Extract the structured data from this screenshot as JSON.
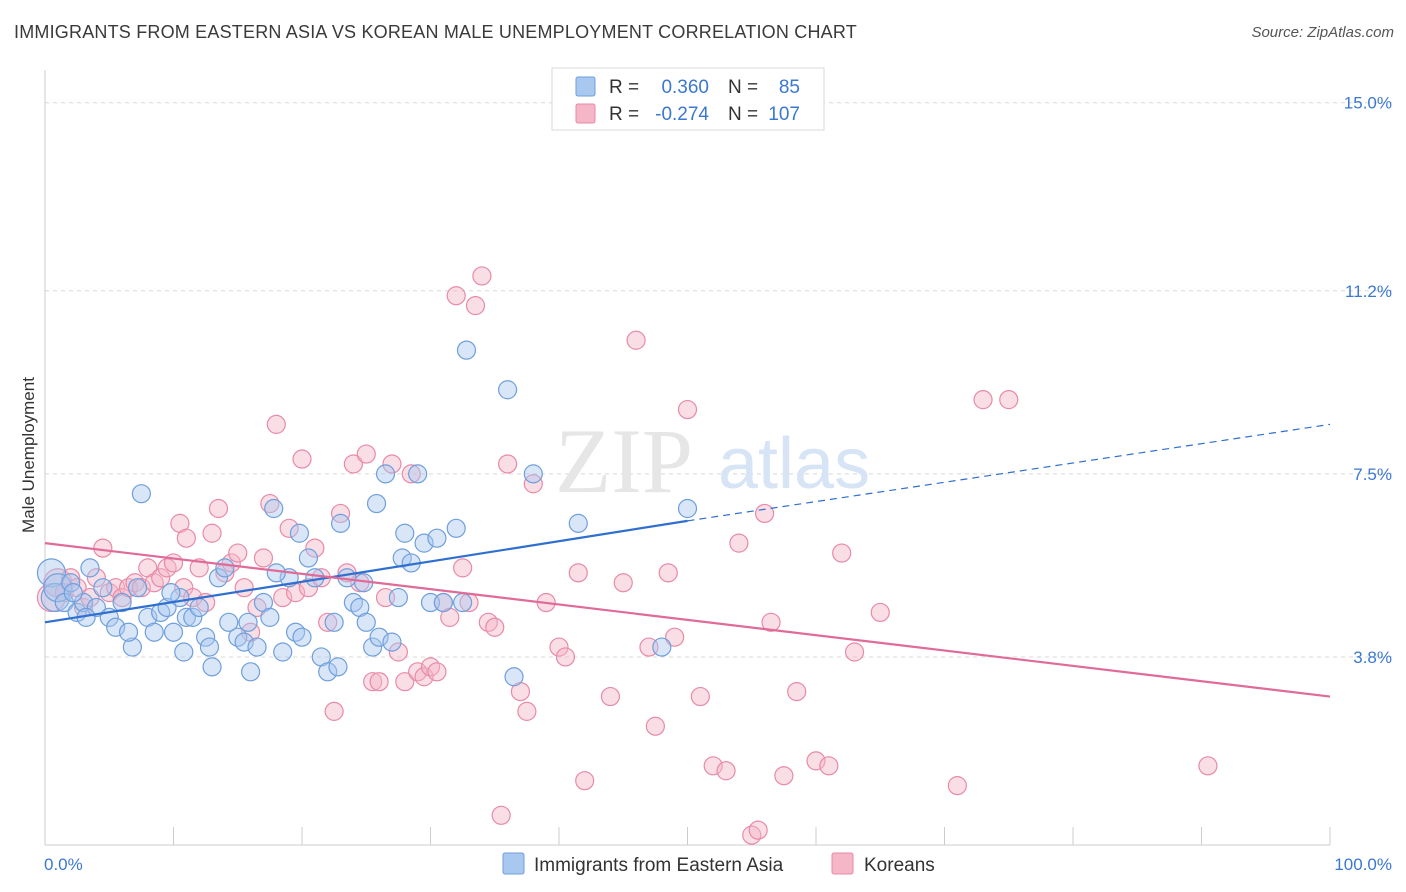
{
  "header": {
    "title": "IMMIGRANTS FROM EASTERN ASIA VS KOREAN MALE UNEMPLOYMENT CORRELATION CHART",
    "source": "Source: ZipAtlas.com"
  },
  "colors": {
    "blue": "#a9c8f0",
    "blue_stroke": "#6f9fdc",
    "blue_line": "#2f6fcf",
    "pink": "#f5b6c8",
    "pink_stroke": "#e88aa8",
    "pink_line": "#e06a98",
    "tick_blue": "#3b78d0",
    "grid": "#d8d8d8"
  },
  "watermark": {
    "zip": "ZIP",
    "atlas": "atlas"
  },
  "legend": {
    "rows": [
      {
        "r_label": "R =",
        "r_value": "0.360",
        "n_label": "N =",
        "n_value": "85"
      },
      {
        "r_label": "R =",
        "r_value": "-0.274",
        "n_label": "N =",
        "n_value": "107"
      }
    ]
  },
  "bottom_legend": [
    "Immigrants from Eastern Asia",
    "Koreans"
  ],
  "chart_data": {
    "type": "scatter",
    "title": "IMMIGRANTS FROM EASTERN ASIA VS KOREAN MALE UNEMPLOYMENT CORRELATION CHART",
    "xlabel": "",
    "ylabel": "Male Unemployment",
    "xlim": [
      0,
      100
    ],
    "ylim": [
      0,
      15.5
    ],
    "x_tick_labels": [
      "0.0%",
      "100.0%"
    ],
    "y_ticks": [
      3.8,
      7.5,
      11.2,
      15.0
    ],
    "y_tick_labels": [
      "3.8%",
      "7.5%",
      "11.2%",
      "15.0%"
    ],
    "grid": true,
    "series": [
      {
        "name": "Immigrants from Eastern Asia",
        "r": 0.36,
        "n": 85,
        "trend": {
          "x0": 0,
          "y0": 4.5,
          "x1": 50,
          "y1": 6.55,
          "dash_to": 100,
          "dash_y": 8.5
        },
        "points": [
          [
            0.5,
            5.5
          ],
          [
            0.8,
            5.0
          ],
          [
            1.0,
            5.2
          ],
          [
            1.5,
            4.9
          ],
          [
            2.0,
            5.3
          ],
          [
            2.5,
            4.7
          ],
          [
            3.0,
            4.9
          ],
          [
            3.5,
            5.6
          ],
          [
            4.0,
            4.8
          ],
          [
            4.5,
            5.2
          ],
          [
            5.0,
            4.6
          ],
          [
            5.5,
            4.4
          ],
          [
            6.0,
            4.9
          ],
          [
            6.8,
            4.0
          ],
          [
            7.2,
            5.2
          ],
          [
            7.5,
            7.1
          ],
          [
            8.0,
            4.6
          ],
          [
            8.5,
            4.3
          ],
          [
            9.0,
            4.7
          ],
          [
            9.5,
            4.8
          ],
          [
            10.0,
            4.3
          ],
          [
            10.5,
            5.0
          ],
          [
            10.8,
            3.9
          ],
          [
            11.0,
            4.6
          ],
          [
            11.5,
            4.6
          ],
          [
            12.0,
            4.8
          ],
          [
            12.5,
            4.2
          ],
          [
            12.8,
            4.0
          ],
          [
            13.0,
            3.6
          ],
          [
            13.5,
            5.4
          ],
          [
            14.0,
            5.6
          ],
          [
            14.3,
            4.5
          ],
          [
            15.0,
            4.2
          ],
          [
            15.5,
            4.1
          ],
          [
            15.8,
            4.5
          ],
          [
            16.0,
            3.5
          ],
          [
            16.5,
            4.0
          ],
          [
            17.0,
            4.9
          ],
          [
            17.5,
            4.6
          ],
          [
            17.8,
            6.8
          ],
          [
            18.5,
            3.9
          ],
          [
            19.0,
            5.4
          ],
          [
            19.5,
            4.3
          ],
          [
            19.8,
            6.3
          ],
          [
            20.0,
            4.2
          ],
          [
            20.5,
            5.8
          ],
          [
            21.0,
            5.4
          ],
          [
            21.5,
            3.8
          ],
          [
            22.0,
            3.5
          ],
          [
            22.5,
            4.5
          ],
          [
            22.8,
            3.6
          ],
          [
            23.0,
            6.5
          ],
          [
            23.5,
            5.4
          ],
          [
            24.0,
            4.9
          ],
          [
            24.5,
            4.8
          ],
          [
            25.0,
            4.5
          ],
          [
            25.5,
            4.0
          ],
          [
            25.8,
            6.9
          ],
          [
            26.0,
            4.2
          ],
          [
            26.5,
            7.5
          ],
          [
            27.0,
            4.1
          ],
          [
            27.5,
            5.0
          ],
          [
            27.8,
            5.8
          ],
          [
            28.0,
            6.3
          ],
          [
            28.5,
            5.7
          ],
          [
            29.0,
            7.5
          ],
          [
            29.5,
            6.1
          ],
          [
            30.0,
            4.9
          ],
          [
            30.5,
            6.2
          ],
          [
            31.0,
            4.9
          ],
          [
            32.0,
            6.4
          ],
          [
            32.5,
            4.9
          ],
          [
            32.8,
            10.0
          ],
          [
            36.0,
            9.2
          ],
          [
            36.5,
            3.4
          ],
          [
            38.0,
            7.5
          ],
          [
            41.5,
            6.5
          ],
          [
            48.0,
            4.0
          ],
          [
            50.0,
            6.8
          ],
          [
            2.2,
            5.1
          ],
          [
            3.2,
            4.6
          ],
          [
            6.5,
            4.3
          ],
          [
            9.8,
            5.1
          ],
          [
            18.0,
            5.5
          ],
          [
            24.8,
            5.3
          ]
        ]
      },
      {
        "name": "Koreans",
        "r": -0.274,
        "n": 107,
        "trend": {
          "x0": 0,
          "y0": 6.1,
          "x1": 100,
          "y1": 3.0
        },
        "points": [
          [
            0.5,
            5.0
          ],
          [
            1.0,
            5.3
          ],
          [
            1.5,
            5.1
          ],
          [
            2.0,
            5.4
          ],
          [
            2.5,
            5.2
          ],
          [
            3.0,
            4.8
          ],
          [
            3.5,
            5.0
          ],
          [
            4.0,
            5.4
          ],
          [
            4.5,
            6.0
          ],
          [
            5.0,
            5.1
          ],
          [
            5.5,
            5.2
          ],
          [
            6.0,
            5.0
          ],
          [
            6.5,
            5.2
          ],
          [
            7.0,
            5.3
          ],
          [
            7.5,
            5.2
          ],
          [
            8.0,
            5.6
          ],
          [
            8.5,
            5.3
          ],
          [
            9.0,
            5.4
          ],
          [
            9.5,
            5.6
          ],
          [
            10.0,
            5.7
          ],
          [
            10.5,
            6.5
          ],
          [
            10.8,
            5.2
          ],
          [
            11.0,
            6.2
          ],
          [
            11.5,
            5.0
          ],
          [
            12.0,
            5.6
          ],
          [
            12.5,
            4.9
          ],
          [
            13.0,
            6.3
          ],
          [
            13.5,
            6.8
          ],
          [
            14.0,
            5.5
          ],
          [
            14.5,
            5.7
          ],
          [
            15.0,
            5.9
          ],
          [
            15.5,
            5.2
          ],
          [
            16.0,
            4.3
          ],
          [
            16.5,
            4.8
          ],
          [
            17.0,
            5.8
          ],
          [
            17.5,
            6.9
          ],
          [
            18.0,
            8.5
          ],
          [
            18.5,
            5.0
          ],
          [
            19.0,
            6.4
          ],
          [
            19.5,
            5.1
          ],
          [
            20.0,
            7.8
          ],
          [
            20.5,
            5.2
          ],
          [
            21.0,
            6.0
          ],
          [
            21.5,
            5.4
          ],
          [
            22.0,
            4.5
          ],
          [
            22.5,
            2.7
          ],
          [
            23.0,
            6.7
          ],
          [
            23.5,
            5.5
          ],
          [
            24.0,
            7.7
          ],
          [
            24.5,
            5.3
          ],
          [
            25.0,
            7.9
          ],
          [
            25.5,
            3.3
          ],
          [
            26.0,
            3.3
          ],
          [
            26.5,
            5.0
          ],
          [
            27.0,
            7.7
          ],
          [
            27.5,
            3.9
          ],
          [
            28.0,
            3.3
          ],
          [
            28.5,
            7.5
          ],
          [
            29.0,
            3.5
          ],
          [
            29.5,
            3.4
          ],
          [
            30.0,
            3.6
          ],
          [
            30.5,
            3.5
          ],
          [
            31.0,
            4.9
          ],
          [
            31.5,
            4.6
          ],
          [
            32.0,
            11.1
          ],
          [
            32.5,
            5.6
          ],
          [
            33.0,
            4.9
          ],
          [
            33.5,
            10.9
          ],
          [
            34.0,
            11.5
          ],
          [
            34.5,
            4.5
          ],
          [
            35.0,
            4.4
          ],
          [
            35.5,
            0.6
          ],
          [
            36.0,
            7.7
          ],
          [
            37.0,
            3.1
          ],
          [
            37.5,
            2.7
          ],
          [
            38.0,
            7.3
          ],
          [
            39.0,
            4.9
          ],
          [
            40.0,
            4.0
          ],
          [
            40.5,
            3.8
          ],
          [
            41.5,
            5.5
          ],
          [
            42.0,
            1.3
          ],
          [
            44.0,
            3.0
          ],
          [
            45.0,
            5.3
          ],
          [
            46.0,
            10.2
          ],
          [
            47.0,
            4.0
          ],
          [
            47.5,
            2.4
          ],
          [
            48.5,
            5.5
          ],
          [
            49.0,
            4.2
          ],
          [
            50.0,
            8.8
          ],
          [
            51.0,
            3.0
          ],
          [
            52.0,
            1.6
          ],
          [
            53.0,
            1.5
          ],
          [
            54.0,
            6.1
          ],
          [
            55.0,
            0.2
          ],
          [
            55.5,
            0.3
          ],
          [
            56.0,
            6.7
          ],
          [
            56.5,
            4.5
          ],
          [
            57.5,
            1.4
          ],
          [
            58.5,
            3.1
          ],
          [
            60.0,
            1.7
          ],
          [
            61.0,
            1.6
          ],
          [
            62.0,
            5.9
          ],
          [
            63.0,
            3.9
          ],
          [
            65.0,
            4.7
          ],
          [
            71.0,
            1.2
          ],
          [
            73.0,
            9.0
          ],
          [
            75.0,
            9.0
          ]
        ]
      }
    ],
    "extra_points": [
      [
        90.5,
        1.6
      ]
    ]
  }
}
